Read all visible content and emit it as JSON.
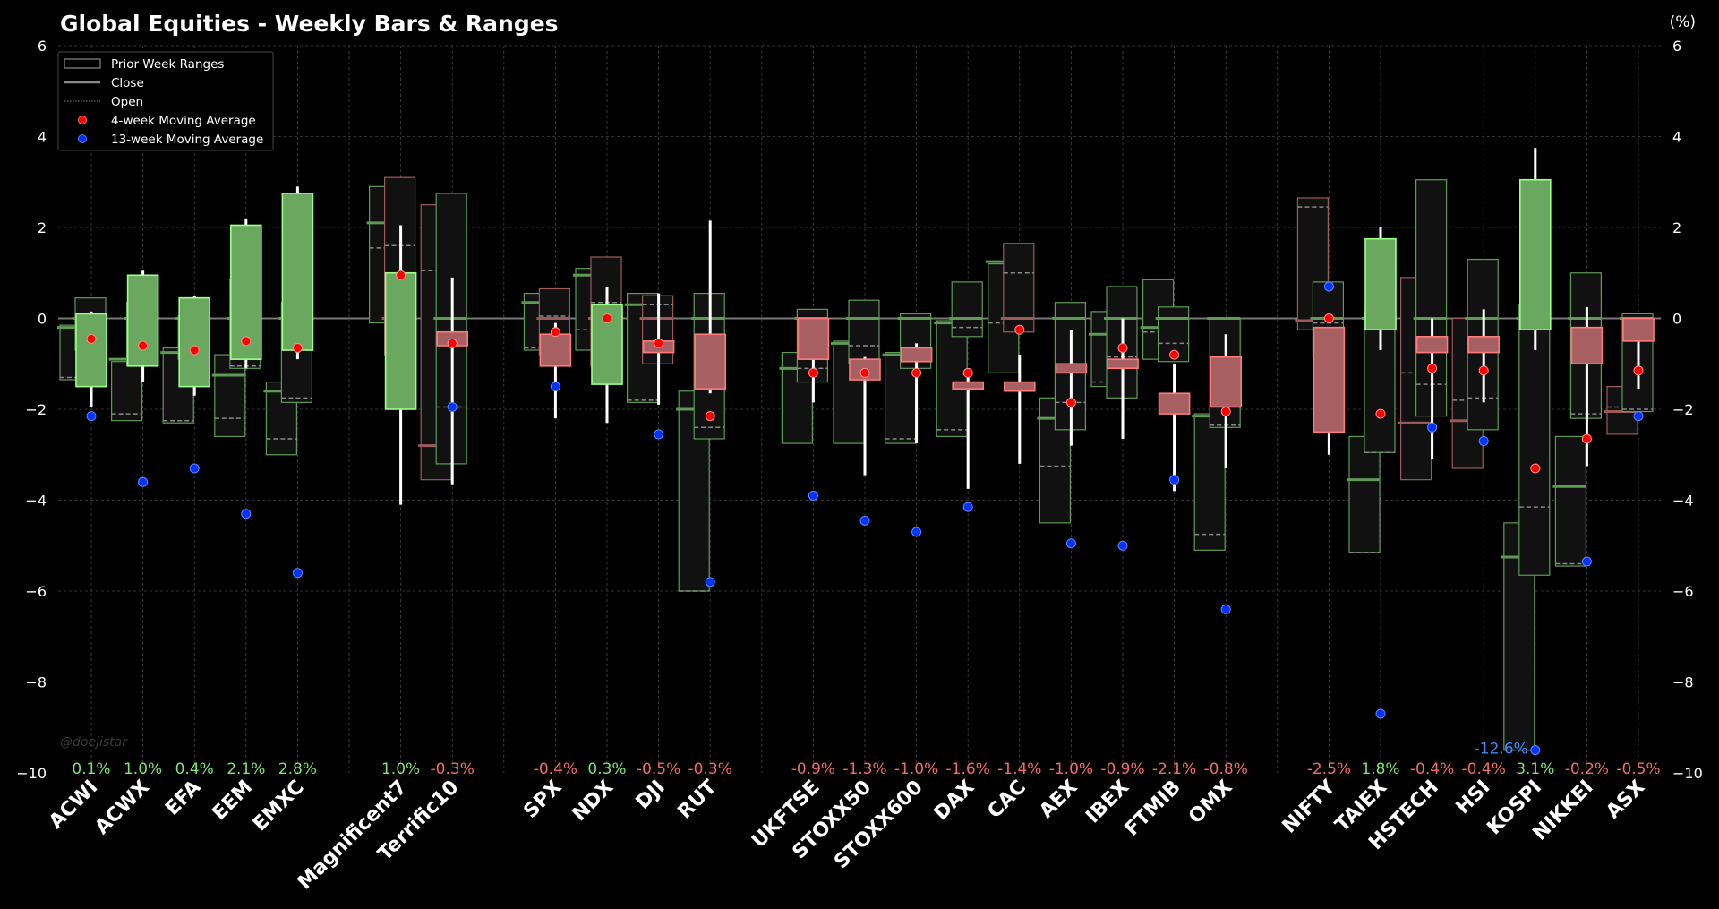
{
  "chart_data": {
    "type": "candlestick-ranges",
    "title": "Global Equities - Weekly Bars & Ranges",
    "ylabel": "(%)",
    "ylim": [
      -10,
      6
    ],
    "yticks": [
      6,
      4,
      2,
      0,
      -2,
      -4,
      -6,
      -8,
      -10
    ],
    "ytick_labels": [
      "6",
      "4",
      "2",
      "0",
      "−2",
      "−4",
      "−6",
      "−8",
      "−10"
    ],
    "grid": true,
    "legend_position": "top-left",
    "legend": [
      {
        "label": "Prior Week Ranges",
        "kind": "box"
      },
      {
        "label": "Close",
        "kind": "solid-line"
      },
      {
        "label": "Open",
        "kind": "dotted-line"
      },
      {
        "label": "4-week Moving Average",
        "kind": "red-dot"
      },
      {
        "label": "13-week Moving Average",
        "kind": "blue-dot"
      }
    ],
    "watermark": "@doejistar",
    "colors": {
      "up": "#6aa85f",
      "up_edge": "#9dff8a",
      "down": "#a85f62",
      "down_edge": "#ff7a7a",
      "ma4": "#ff0000",
      "ma13": "#0033ff",
      "pct_up": "#7de36a",
      "pct_down": "#f06a6a",
      "outlier": "#3a8cff"
    },
    "groups": [
      [
        "ACWI",
        "ACWX",
        "EFA",
        "EEM",
        "EMXC"
      ],
      [
        "Magnificent7",
        "Terrific10"
      ],
      [
        "SPX",
        "NDX",
        "DJI",
        "RUT"
      ],
      [
        "UKFTSE",
        "STOXX50",
        "STOXX600",
        "DAX",
        "CAC",
        "AEX",
        "IBEX",
        "FTMIB",
        "OMX"
      ],
      [
        "NIFTY",
        "TAIEX",
        "HSTECH",
        "HSI",
        "KOSPI",
        "NIKKEI",
        "ASX"
      ]
    ],
    "tickers": [
      {
        "name": "ACWI",
        "pct": "0.1%",
        "close": 0.1,
        "high": 0.15,
        "low": -1.95,
        "ma4": -0.45,
        "ma13": -2.15,
        "prior": [
          {
            "high": -0.15,
            "low": -1.35,
            "open": -1.3,
            "close": -0.2,
            "up": true
          },
          {
            "high": 0.45,
            "low": -0.7,
            "open": -0.3,
            "close": 0.0,
            "up": true
          }
        ]
      },
      {
        "name": "ACWX",
        "pct": "1.0%",
        "close": 0.95,
        "high": 1.05,
        "low": -1.4,
        "ma4": -0.6,
        "ma13": -3.6,
        "prior": [
          {
            "high": -0.95,
            "low": -2.25,
            "open": -2.1,
            "close": -0.9,
            "up": true
          },
          {
            "high": 0.35,
            "low": -1.05,
            "open": -0.6,
            "close": 0.0,
            "up": true
          }
        ]
      },
      {
        "name": "EFA",
        "pct": "0.4%",
        "close": 0.45,
        "high": 0.5,
        "low": -1.7,
        "ma4": -0.7,
        "ma13": -3.3,
        "prior": [
          {
            "high": -0.65,
            "low": -2.3,
            "open": -2.25,
            "close": -0.75,
            "up": true
          },
          {
            "high": 0.05,
            "low": -0.9,
            "open": -0.4,
            "close": 0.0,
            "up": true
          }
        ]
      },
      {
        "name": "EEM",
        "pct": "2.1%",
        "close": 2.05,
        "high": 2.2,
        "low": -1.1,
        "ma4": -0.5,
        "ma13": -4.3,
        "prior": [
          {
            "high": -0.8,
            "low": -2.6,
            "open": -2.2,
            "close": -1.25,
            "up": true
          },
          {
            "high": 0.85,
            "low": -1.1,
            "open": -1.05,
            "close": 0.0,
            "up": true
          }
        ]
      },
      {
        "name": "EMXC",
        "pct": "2.8%",
        "close": 2.75,
        "high": 2.9,
        "low": -0.9,
        "ma4": -0.65,
        "ma13": -5.6,
        "prior": [
          {
            "high": -1.4,
            "low": -3.0,
            "open": -2.65,
            "close": -1.6,
            "up": true
          },
          {
            "high": 0.35,
            "low": -1.85,
            "open": -1.75,
            "close": 0.0,
            "up": true
          }
        ]
      },
      {
        "name": "Magnificent7",
        "pct": "1.0%",
        "close": 1.0,
        "high": 2.05,
        "low": -4.1,
        "ma4": 0.95,
        "ma13": null,
        "prior": [
          {
            "high": 2.9,
            "low": -0.1,
            "open": 1.55,
            "close": 2.1,
            "up": true
          },
          {
            "high": 3.1,
            "low": -0.8,
            "open": 1.6,
            "close": 0.0,
            "up": false
          }
        ]
      },
      {
        "name": "Terrific10",
        "pct": "-0.3%",
        "close": -0.6,
        "open_body": -0.3,
        "high": 0.9,
        "low": -3.65,
        "ma4": -0.55,
        "ma13": -1.95,
        "prior": [
          {
            "high": 2.5,
            "low": -3.55,
            "open": 1.05,
            "close": -2.8,
            "up": false
          },
          {
            "high": 2.75,
            "low": -3.2,
            "open": -1.95,
            "close": 0.0,
            "up": true
          }
        ]
      },
      {
        "name": "SPX",
        "pct": "-0.4%",
        "close": -1.05,
        "open_body": -0.35,
        "high": -0.1,
        "low": -2.2,
        "ma4": -0.3,
        "ma13": -1.5,
        "prior": [
          {
            "high": 0.55,
            "low": -0.7,
            "open": -0.65,
            "close": 0.35,
            "up": true
          },
          {
            "high": 0.65,
            "low": -0.8,
            "open": 0.05,
            "close": 0.0,
            "up": false
          }
        ]
      },
      {
        "name": "NDX",
        "pct": "0.3%",
        "close": 0.3,
        "high": 0.7,
        "low": -2.3,
        "ma4": -0.0,
        "ma13": null,
        "open_body": -1.45,
        "prior": [
          {
            "high": 1.1,
            "low": -0.7,
            "open": -0.25,
            "close": 0.95,
            "up": true
          },
          {
            "high": 1.35,
            "low": -1.05,
            "open": 0.35,
            "close": 0.0,
            "up": false
          }
        ]
      },
      {
        "name": "DJI",
        "pct": "-0.5%",
        "close": -0.75,
        "open_body": -0.5,
        "high": 0.55,
        "low": -1.9,
        "ma4": -0.55,
        "ma13": -2.55,
        "prior": [
          {
            "high": 0.55,
            "low": -1.85,
            "open": -1.8,
            "close": 0.3,
            "up": true
          },
          {
            "high": 0.5,
            "low": -1.0,
            "open": 0.3,
            "close": 0.0,
            "up": false
          }
        ]
      },
      {
        "name": "RUT",
        "pct": "-0.3%",
        "close": -1.55,
        "open_body": -0.35,
        "high": 2.15,
        "low": -1.65,
        "ma4": -2.15,
        "ma13": -5.8,
        "prior": [
          {
            "high": -1.6,
            "low": -6.0,
            "open": -6.0,
            "close": -2.0,
            "up": true
          },
          {
            "high": 0.55,
            "low": -2.65,
            "open": -2.4,
            "close": 0.0,
            "up": true
          }
        ]
      },
      {
        "name": "UKFTSE",
        "pct": "-0.9%",
        "close": -0.9,
        "open_body": 0.0,
        "high": 0.0,
        "low": -1.85,
        "ma4": -1.2,
        "ma13": -3.9,
        "prior": [
          {
            "high": -0.75,
            "low": -2.75,
            "open": -1.1,
            "close": -1.1,
            "up": true
          },
          {
            "high": 0.2,
            "low": -1.4,
            "open": -1.1,
            "close": 0.0,
            "up": true
          }
        ]
      },
      {
        "name": "STOXX50",
        "pct": "-1.3%",
        "close": -1.35,
        "open_body": -0.9,
        "high": -0.85,
        "low": -3.45,
        "ma4": -1.2,
        "ma13": -4.45,
        "prior": [
          {
            "high": -0.5,
            "low": -2.75,
            "open": -0.55,
            "close": -0.55,
            "up": true
          },
          {
            "high": 0.4,
            "low": -1.0,
            "open": -0.6,
            "close": 0.0,
            "up": true
          }
        ]
      },
      {
        "name": "STOXX600",
        "pct": "-1.0%",
        "close": -0.95,
        "open_body": -0.65,
        "high": -0.55,
        "low": -2.75,
        "ma4": -1.2,
        "ma13": -4.7,
        "prior": [
          {
            "high": -0.75,
            "low": -2.75,
            "open": -2.65,
            "close": -0.8,
            "up": true
          },
          {
            "high": 0.1,
            "low": -1.1,
            "open": -0.9,
            "close": 0.0,
            "up": true
          }
        ]
      },
      {
        "name": "DAX",
        "pct": "-1.6%",
        "close": -1.55,
        "open_body": -1.4,
        "high": -1.1,
        "low": -3.75,
        "ma4": -1.2,
        "ma13": -4.15,
        "prior": [
          {
            "high": -0.05,
            "low": -2.6,
            "open": -2.45,
            "close": -0.1,
            "up": true
          },
          {
            "high": 0.8,
            "low": -0.4,
            "open": -0.2,
            "close": 0.0,
            "up": true
          }
        ]
      },
      {
        "name": "CAC",
        "pct": "-1.4%",
        "close": -1.6,
        "open_body": -1.4,
        "high": -0.8,
        "low": -3.2,
        "ma4": -0.25,
        "ma13": null,
        "prior": [
          {
            "high": 1.2,
            "low": -1.2,
            "open": -0.1,
            "close": 1.25,
            "up": true
          },
          {
            "high": 1.65,
            "low": -0.3,
            "open": 1.0,
            "close": 0.0,
            "up": false
          }
        ]
      },
      {
        "name": "AEX",
        "pct": "-1.0%",
        "close": -1.2,
        "open_body": -1.0,
        "high": -0.25,
        "low": -2.8,
        "ma4": -1.85,
        "ma13": -4.95,
        "prior": [
          {
            "high": -1.75,
            "low": -4.5,
            "open": -3.25,
            "close": -2.2,
            "up": true
          },
          {
            "high": 0.35,
            "low": -2.45,
            "open": -1.85,
            "close": 0.0,
            "up": true
          }
        ]
      },
      {
        "name": "IBEX",
        "pct": "-0.9%",
        "close": -1.1,
        "open_body": -0.9,
        "high": 0.0,
        "low": -2.65,
        "ma4": -0.65,
        "ma13": -5.0,
        "prior": [
          {
            "high": 0.15,
            "low": -1.5,
            "open": -1.4,
            "close": -0.35,
            "up": true
          },
          {
            "high": 0.7,
            "low": -1.75,
            "open": -0.85,
            "close": 0.0,
            "up": true
          }
        ]
      },
      {
        "name": "FTMIB",
        "pct": "-2.1%",
        "close": -2.1,
        "open_body": -1.65,
        "high": -1.0,
        "low": -3.8,
        "ma4": -0.8,
        "ma13": -3.55,
        "prior": [
          {
            "high": 0.85,
            "low": -0.9,
            "open": -0.3,
            "close": -0.2,
            "up": true
          },
          {
            "high": 0.25,
            "low": -0.95,
            "open": -0.55,
            "close": 0.0,
            "up": true
          }
        ]
      },
      {
        "name": "OMX",
        "pct": "-0.8%",
        "close": -1.95,
        "open_body": -0.85,
        "high": -0.35,
        "low": -3.3,
        "ma4": -2.05,
        "ma13": -6.4,
        "prior": [
          {
            "high": -2.1,
            "low": -5.1,
            "open": -4.75,
            "close": -2.15,
            "up": true
          },
          {
            "high": 0.0,
            "low": -2.4,
            "open": -2.35,
            "close": 0.0,
            "up": true
          }
        ]
      },
      {
        "name": "NIFTY",
        "pct": "-2.5%",
        "close": -2.5,
        "open_body": -0.2,
        "high": -0.2,
        "low": -3.0,
        "ma4": 0.0,
        "ma13": 0.7,
        "prior": [
          {
            "high": 2.65,
            "low": -0.25,
            "open": 2.45,
            "close": -0.05,
            "up": false
          },
          {
            "high": 0.8,
            "low": -0.85,
            "open": -0.1,
            "close": 0.0,
            "up": true
          }
        ]
      },
      {
        "name": "TAIEX",
        "pct": "1.8%",
        "close": 1.75,
        "open_body": -0.25,
        "high": 2.0,
        "low": -0.7,
        "ma4": -2.1,
        "ma13": -8.7,
        "prior": [
          {
            "high": -2.6,
            "low": -5.15,
            "open": -5.15,
            "close": -3.55,
            "up": true
          },
          {
            "high": 0.15,
            "low": -2.95,
            "open": -2.95,
            "close": 0.0,
            "up": true
          }
        ]
      },
      {
        "name": "HSTECH",
        "pct": "-0.4%",
        "close": -0.75,
        "open_body": -0.4,
        "high": 0.0,
        "low": -3.1,
        "ma4": -1.1,
        "ma13": -2.4,
        "prior": [
          {
            "high": 0.9,
            "low": -3.55,
            "open": -1.2,
            "close": -2.3,
            "up": false
          },
          {
            "high": 3.05,
            "low": -2.15,
            "open": -1.45,
            "close": 0.0,
            "up": true
          }
        ]
      },
      {
        "name": "HSI",
        "pct": "-0.4%",
        "close": -0.75,
        "open_body": -0.4,
        "high": 0.2,
        "low": -1.85,
        "ma4": -1.15,
        "ma13": -2.7,
        "prior": [
          {
            "high": 0.0,
            "low": -3.3,
            "open": -1.8,
            "close": -2.25,
            "up": false
          },
          {
            "high": 1.3,
            "low": -2.45,
            "open": -1.75,
            "close": 0.0,
            "up": true
          }
        ]
      },
      {
        "name": "KOSPI",
        "pct": "3.1%",
        "close": 3.05,
        "open_body": -0.25,
        "high": 3.75,
        "low": -0.7,
        "ma4": -3.3,
        "ma13": -9.5,
        "ma13_label": "-12.6%",
        "prior": [
          {
            "high": -4.5,
            "low": -9.5,
            "open": -9.5,
            "close": -5.25,
            "up": true
          },
          {
            "high": 0.3,
            "low": -5.65,
            "open": -4.15,
            "close": 0.0,
            "up": true
          }
        ]
      },
      {
        "name": "NIKKEI",
        "pct": "-0.2%",
        "close": -1.0,
        "open_body": -0.2,
        "high": 0.25,
        "low": -3.25,
        "ma4": -2.65,
        "ma13": -5.35,
        "prior": [
          {
            "high": -2.6,
            "low": -5.45,
            "open": -5.4,
            "close": -3.7,
            "up": true
          },
          {
            "high": 1.0,
            "low": -2.2,
            "open": -2.1,
            "close": 0.0,
            "up": true
          }
        ]
      },
      {
        "name": "ASX",
        "pct": "-0.5%",
        "close": -0.5,
        "open_body": 0.0,
        "high": 0.0,
        "low": -1.55,
        "ma4": -1.15,
        "ma13": -2.15,
        "prior": [
          {
            "high": -1.5,
            "low": -2.55,
            "open": -1.95,
            "close": -2.05,
            "up": false
          },
          {
            "high": 0.1,
            "low": -2.05,
            "open": -2.0,
            "close": 0.0,
            "up": true
          }
        ]
      }
    ]
  }
}
